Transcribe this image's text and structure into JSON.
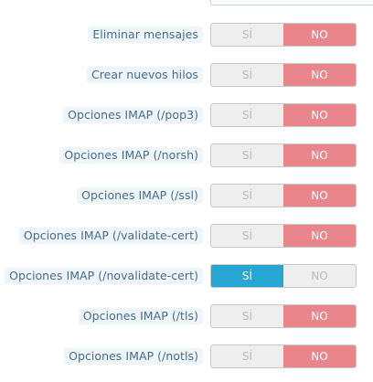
{
  "rows": [
    {
      "label": "Eliminar mensajes",
      "yes": "SÍ",
      "no": "NO",
      "value": "no"
    },
    {
      "label": "Crear nuevos hilos",
      "yes": "SÍ",
      "no": "NO",
      "value": "no"
    },
    {
      "label": "Opciones IMAP (/pop3)",
      "yes": "SÍ",
      "no": "NO",
      "value": "no"
    },
    {
      "label": "Opciones IMAP (/norsh)",
      "yes": "SÍ",
      "no": "NO",
      "value": "no"
    },
    {
      "label": "Opciones IMAP (/ssl)",
      "yes": "SÍ",
      "no": "NO",
      "value": "no"
    },
    {
      "label": "Opciones IMAP (/validate-cert)",
      "yes": "SÍ",
      "no": "NO",
      "value": "no"
    },
    {
      "label": "Opciones IMAP (/novalidate-cert)",
      "yes": "SÍ",
      "no": "NO",
      "value": "yes"
    },
    {
      "label": "Opciones IMAP (/tls)",
      "yes": "SÍ",
      "no": "NO",
      "value": "no"
    },
    {
      "label": "Opciones IMAP (/notls)",
      "yes": "SÍ",
      "no": "NO",
      "value": "no"
    }
  ],
  "colors": {
    "no_active": "#e8868c",
    "yes_active": "#25a6d3",
    "label_bg": "#eef6fb",
    "label_text": "#4b6b86"
  }
}
